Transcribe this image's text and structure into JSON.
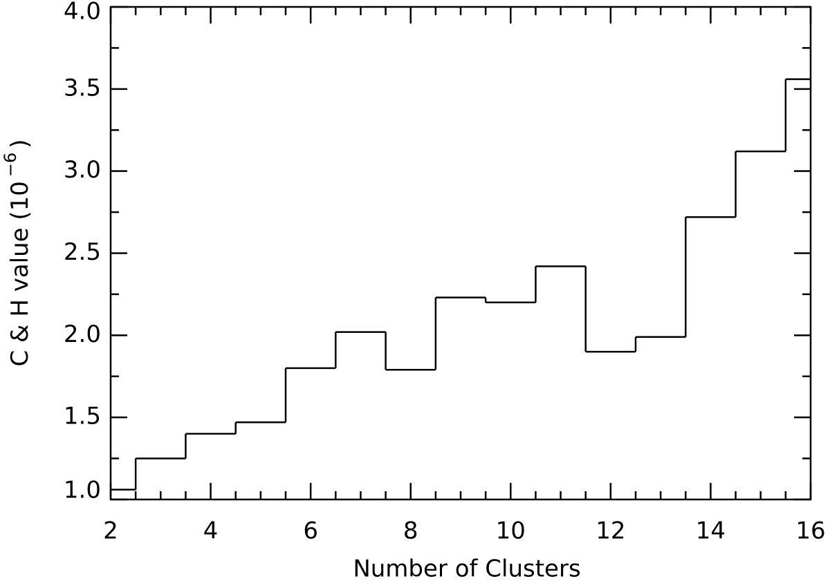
{
  "chart_data": {
    "type": "step",
    "x": [
      2,
      3,
      4,
      5,
      6,
      7,
      8,
      9,
      10,
      11,
      12,
      13,
      14,
      15,
      16
    ],
    "values": [
      1.06,
      1.25,
      1.4,
      1.47,
      1.8,
      2.02,
      1.79,
      2.23,
      2.2,
      2.42,
      1.9,
      1.99,
      2.72,
      3.12,
      3.56
    ],
    "color": "#000000",
    "xlabel": "Number of Clusters",
    "ylabel": {
      "text": "C & H value (10",
      "superscript": "−6",
      "suffix": ")"
    },
    "xlim": [
      2,
      16
    ],
    "xticks": [
      2,
      4,
      6,
      8,
      10,
      12,
      14,
      16
    ],
    "ylim": [
      1.0,
      4.0
    ],
    "yticks": [
      {
        "value": 1.0,
        "label": "1.0"
      },
      {
        "value": 1.5,
        "label": "1.5"
      },
      {
        "value": 2.0,
        "label": "2.0"
      },
      {
        "value": 2.5,
        "label": "2.5"
      },
      {
        "value": 3.0,
        "label": "3.0"
      },
      {
        "value": 3.5,
        "label": "3.5"
      },
      {
        "value": 4.0,
        "label": "4.0"
      }
    ]
  }
}
